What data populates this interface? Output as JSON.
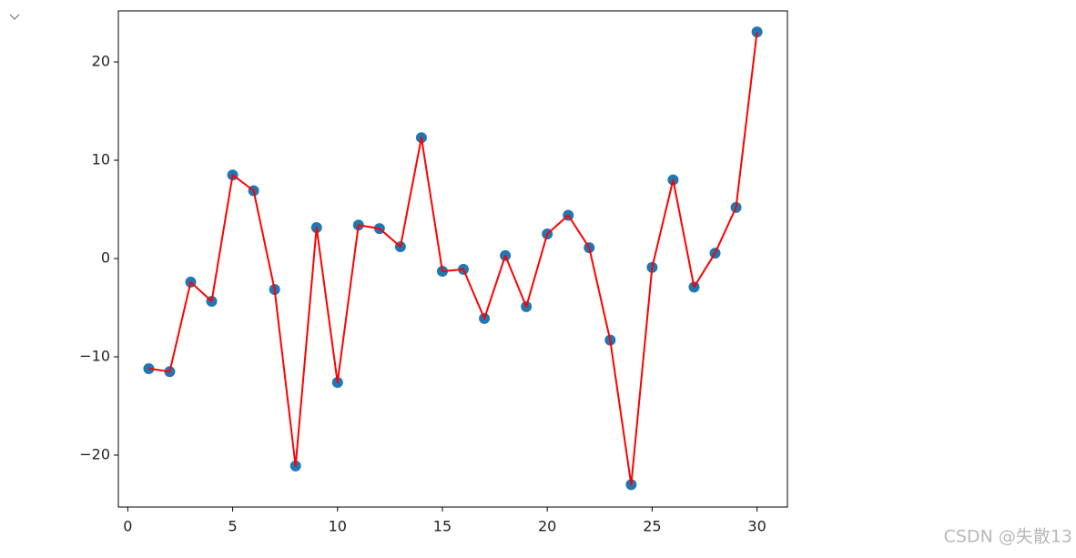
{
  "chart_data": {
    "type": "line",
    "x": [
      1,
      2,
      3,
      4,
      5,
      6,
      7,
      8,
      9,
      10,
      11,
      12,
      13,
      14,
      15,
      16,
      17,
      18,
      19,
      20,
      21,
      22,
      23,
      24,
      25,
      26,
      27,
      28,
      29,
      30
    ],
    "series": [
      {
        "color": "#ff0000",
        "marker_color": "#1f77b4",
        "values": [
          -11.2,
          -11.5,
          -2.4,
          -4.35,
          8.5,
          6.9,
          -3.15,
          -21.1,
          3.15,
          -12.6,
          3.4,
          3.05,
          1.2,
          12.3,
          -1.3,
          -1.1,
          -6.1,
          0.3,
          -4.9,
          2.5,
          4.4,
          1.1,
          -8.3,
          -23.0,
          -0.9,
          8.0,
          -2.9,
          0.55,
          5.2,
          23.05
        ]
      }
    ],
    "xlim": [
      -0.45,
      31.45
    ],
    "ylim": [
      -25.28,
      25.19
    ],
    "xticks": [
      0,
      5,
      10,
      15,
      20,
      25,
      30
    ],
    "yticks": [
      {
        "value": -20,
        "label": "−20"
      },
      {
        "value": -10,
        "label": "−10"
      },
      0,
      10,
      20
    ]
  },
  "watermark": "CSDN @失散13"
}
